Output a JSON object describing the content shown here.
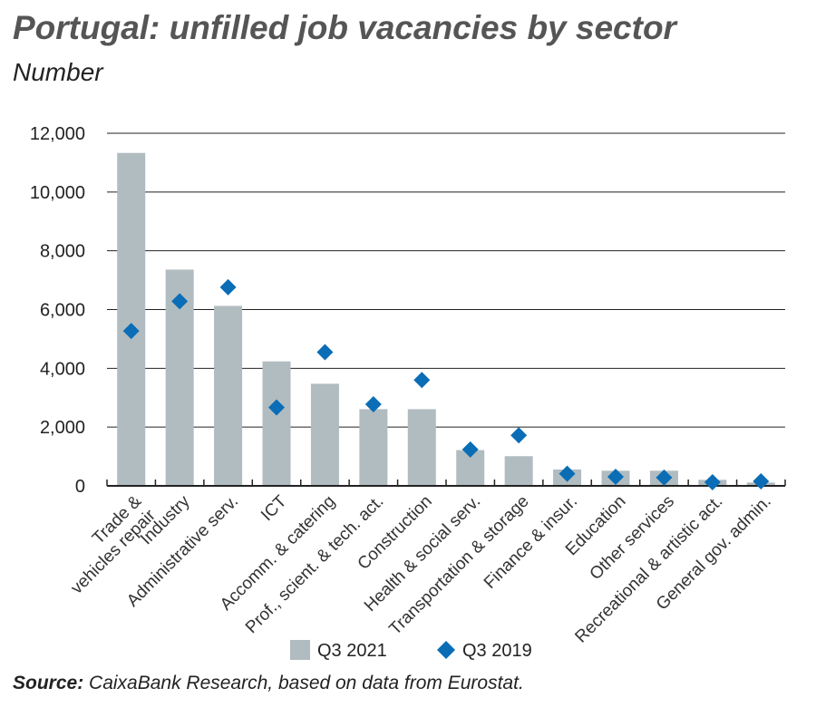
{
  "chart_data": {
    "type": "bar",
    "title": "Portugal: unfilled job vacancies by sector",
    "subtitle": "Number",
    "categories": [
      "Trade & vehicles repair",
      "Industry",
      "Administrative serv.",
      "ICT",
      "Accomm. & catering",
      "Prof., scient. & tech. act.",
      "Construction",
      "Health & social serv.",
      "Transportation & storage",
      "Finance & insur.",
      "Education",
      "Other services",
      "Recreational & artistic act.",
      "General gov. admin."
    ],
    "series": [
      {
        "name": "Q3 2021",
        "type": "bar",
        "color": "#b1bcc0",
        "values": [
          11330,
          7360,
          6125,
          4235,
          3475,
          2610,
          2610,
          1216,
          1010,
          557,
          515,
          515,
          206,
          113
        ]
      },
      {
        "name": "Q3 2019",
        "type": "scatter",
        "marker": "diamond",
        "color": "#0a6db6",
        "values": [
          5270,
          6280,
          6760,
          2670,
          4550,
          2775,
          3600,
          1237,
          1720,
          412,
          309,
          280,
          124,
          155
        ]
      }
    ],
    "ylim": [
      0,
      12000
    ],
    "yticks": [
      0,
      2000,
      4000,
      6000,
      8000,
      10000,
      12000
    ],
    "ytick_labels": [
      "0",
      "2,000",
      "4,000",
      "6,000",
      "8,000",
      "10,000",
      "12,000"
    ],
    "grid": true,
    "legend_position": "bottom-center",
    "xlabel": "",
    "ylabel": ""
  },
  "source_label": "Source:",
  "source_text": " CaixaBank Research, based on data from Eurostat."
}
